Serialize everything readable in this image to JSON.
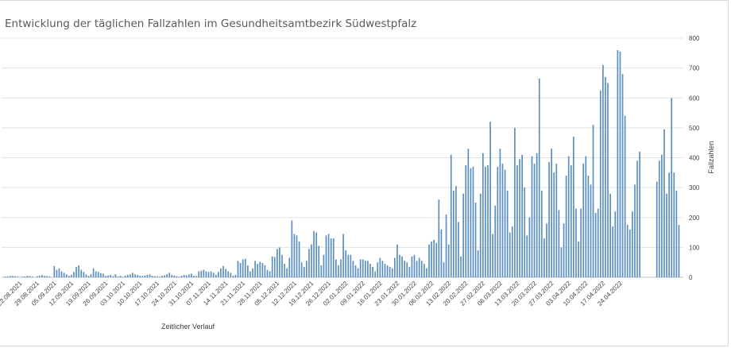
{
  "chart_data": {
    "type": "bar",
    "title": "Entwicklung der täglichen Fallzahlen im Gesundheitsamtbezirk Südwestpfalz",
    "xlabel": "Zeitlicher Verlauf",
    "ylabel": "Fallzahlen",
    "ylim": [
      0,
      800
    ],
    "yticks": [
      0,
      100,
      200,
      300,
      400,
      500,
      600,
      700,
      800
    ],
    "y_axis_side": "right",
    "grid": true,
    "legend": "none",
    "bar_color": "#5b8fc0",
    "start_date": "2021-08-15",
    "x_tick_labels": [
      "22.08.2021",
      "29.08.2021",
      "05.09.2021",
      "12.09.2021",
      "19.09.2021",
      "26.09.2021",
      "03.10.2021",
      "10.10.2021",
      "17.10.2021",
      "24.10.2021",
      "31.10.2021",
      "07.11.2021",
      "14.11.2021",
      "21.11.2021",
      "28.11.2021",
      "05.12.2021",
      "12.12.2021",
      "19.12.2021",
      "26.12.2021",
      "02.01.2022",
      "09.01.2022",
      "16.01.2022",
      "23.01.2022",
      "30.01.2022",
      "06.02.2022",
      "13.02.2022",
      "20.02.2022",
      "27.02.2022",
      "06.03.2022",
      "13.03.2022",
      "20.03.2022",
      "27.03.2022",
      "03.04.2022",
      "10.04.2022",
      "17.04.2022",
      "24.04.2022"
    ],
    "values": [
      0,
      2,
      3,
      4,
      5,
      3,
      2,
      0,
      2,
      3,
      5,
      4,
      3,
      0,
      4,
      6,
      8,
      5,
      4,
      3,
      0,
      38,
      25,
      30,
      20,
      15,
      10,
      5,
      8,
      18,
      35,
      40,
      25,
      18,
      10,
      5,
      10,
      30,
      20,
      18,
      14,
      12,
      5,
      6,
      8,
      4,
      10,
      3,
      5,
      2,
      6,
      8,
      10,
      15,
      10,
      8,
      5,
      4,
      6,
      8,
      10,
      5,
      4,
      3,
      2,
      5,
      7,
      10,
      15,
      8,
      6,
      4,
      2,
      5,
      8,
      7,
      10,
      12,
      5,
      4,
      20,
      22,
      25,
      20,
      18,
      20,
      15,
      8,
      18,
      30,
      38,
      28,
      20,
      15,
      5,
      8,
      55,
      48,
      60,
      62,
      40,
      20,
      30,
      55,
      45,
      52,
      48,
      40,
      25,
      20,
      70,
      68,
      95,
      100,
      75,
      45,
      30,
      65,
      190,
      145,
      140,
      120,
      50,
      35,
      55,
      95,
      110,
      155,
      150,
      105,
      40,
      75,
      140,
      145,
      130,
      130,
      60,
      40,
      60,
      145,
      90,
      75,
      75,
      55,
      40,
      30,
      60,
      60,
      55,
      55,
      45,
      35,
      20,
      50,
      65,
      55,
      45,
      40,
      35,
      30,
      65,
      110,
      75,
      70,
      55,
      50,
      35,
      70,
      75,
      55,
      65,
      55,
      45,
      30,
      110,
      120,
      125,
      115,
      260,
      160,
      50,
      210,
      110,
      410,
      290,
      305,
      185,
      70,
      280,
      375,
      430,
      365,
      370,
      250,
      90,
      280,
      415,
      370,
      375,
      520,
      145,
      240,
      370,
      430,
      380,
      360,
      290,
      150,
      170,
      500,
      375,
      395,
      410,
      300,
      140,
      200,
      405,
      380,
      415,
      665,
      290,
      130,
      180,
      385,
      430,
      350,
      380,
      225,
      100,
      180,
      340,
      405,
      375,
      470,
      230,
      120,
      230,
      380,
      405,
      340,
      310,
      510,
      215,
      230,
      625,
      710,
      670,
      650,
      280,
      170,
      220,
      760,
      755,
      680,
      540,
      175,
      160,
      220,
      310,
      390,
      420,
      0,
      0,
      0,
      0,
      0,
      0,
      320,
      390,
      410,
      495,
      280,
      350,
      600,
      350,
      290,
      175
    ]
  }
}
